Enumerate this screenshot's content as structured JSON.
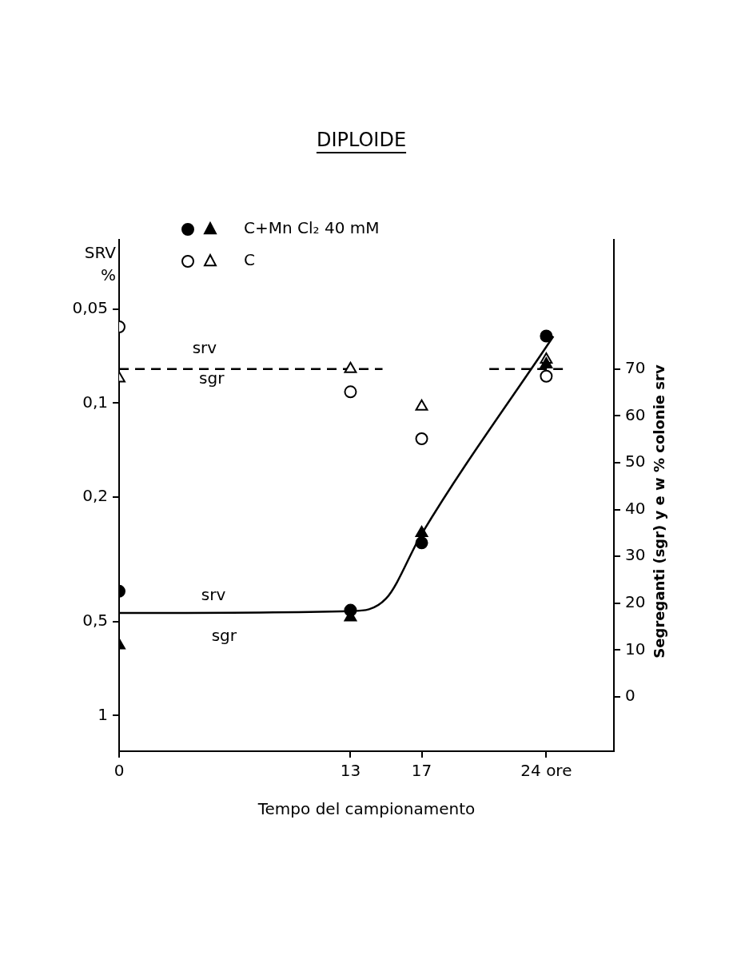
{
  "chart_data": {
    "type": "scatter",
    "title": "DIPLOIDE",
    "x_label": "Tempo del campionamento",
    "y_label": "SRV %",
    "y2_label": "Segreganti (sgr) y e w % colonie srv",
    "log": "y",
    "grid": false,
    "legend": "top-left",
    "xlim": [
      0,
      27.8
    ],
    "xticks": [
      0,
      13,
      17,
      {
        "value": 24,
        "label": "24 ore"
      }
    ],
    "ylim": [
      0.03,
      1.3
    ],
    "yticks": [
      {
        "value": 0.05,
        "label": "0,05"
      },
      {
        "value": 0.1,
        "label": "0,1"
      },
      {
        "value": 0.2,
        "label": "0,2"
      },
      {
        "value": 0.5,
        "label": "0,5"
      },
      1
    ],
    "y2lim": [
      -11.6,
      97.6
    ],
    "y2ticks": [
      0,
      10,
      20,
      30,
      40,
      50,
      60,
      70
    ],
    "series": [
      {
        "name": "C+Mn Cl₂ 40 mM",
        "color": "#000000",
        "marker": "filled circle",
        "x": [
          0,
          13,
          17,
          24
        ],
        "values": [
          0.4,
          0.46,
          0.28,
          0.061
        ]
      },
      {
        "name": "C+Mn Cl₂ 40 mM",
        "color": "#000000",
        "marker": "filled triangle",
        "axis": "y2",
        "x": [
          0,
          13,
          17,
          24
        ],
        "values": [
          11,
          17,
          35,
          71
        ]
      },
      {
        "name": "C",
        "color": "#000000",
        "marker": "open circle",
        "x": [
          0,
          13,
          17,
          24
        ],
        "values": [
          0.057,
          0.092,
          0.13,
          0.082
        ]
      },
      {
        "name": "C",
        "color": "#000000",
        "marker": "open triangle",
        "axis": "y2",
        "x": [
          0,
          13,
          17,
          24
        ],
        "values": [
          68,
          70,
          62,
          72
        ]
      },
      {
        "type": "line",
        "line_style": "dashed",
        "color": "#000000",
        "axis": "y2",
        "x": [
          0,
          14.8,
          17,
          20.8,
          25.2
        ],
        "values": [
          70,
          70,
          null,
          70,
          70
        ]
      },
      {
        "type": "line",
        "line_style": "solid",
        "color": "#000000",
        "axis": "y2",
        "x": [
          0,
          13,
          15,
          17,
          24.4
        ],
        "values": [
          17.9,
          18.3,
          21,
          34.8,
          77
        ]
      }
    ],
    "annotations": [
      {
        "text": "srv",
        "x": 4.8,
        "y": 74.2,
        "axis": "y2"
      },
      {
        "text": "sgr",
        "x": 5.2,
        "y": 67.7,
        "axis": "y2"
      },
      {
        "text": "srv",
        "x": 5.3,
        "y": 21.5,
        "axis": "y2"
      },
      {
        "text": "sgr",
        "x": 5.9,
        "y": 12.8,
        "axis": "y2"
      }
    ]
  }
}
